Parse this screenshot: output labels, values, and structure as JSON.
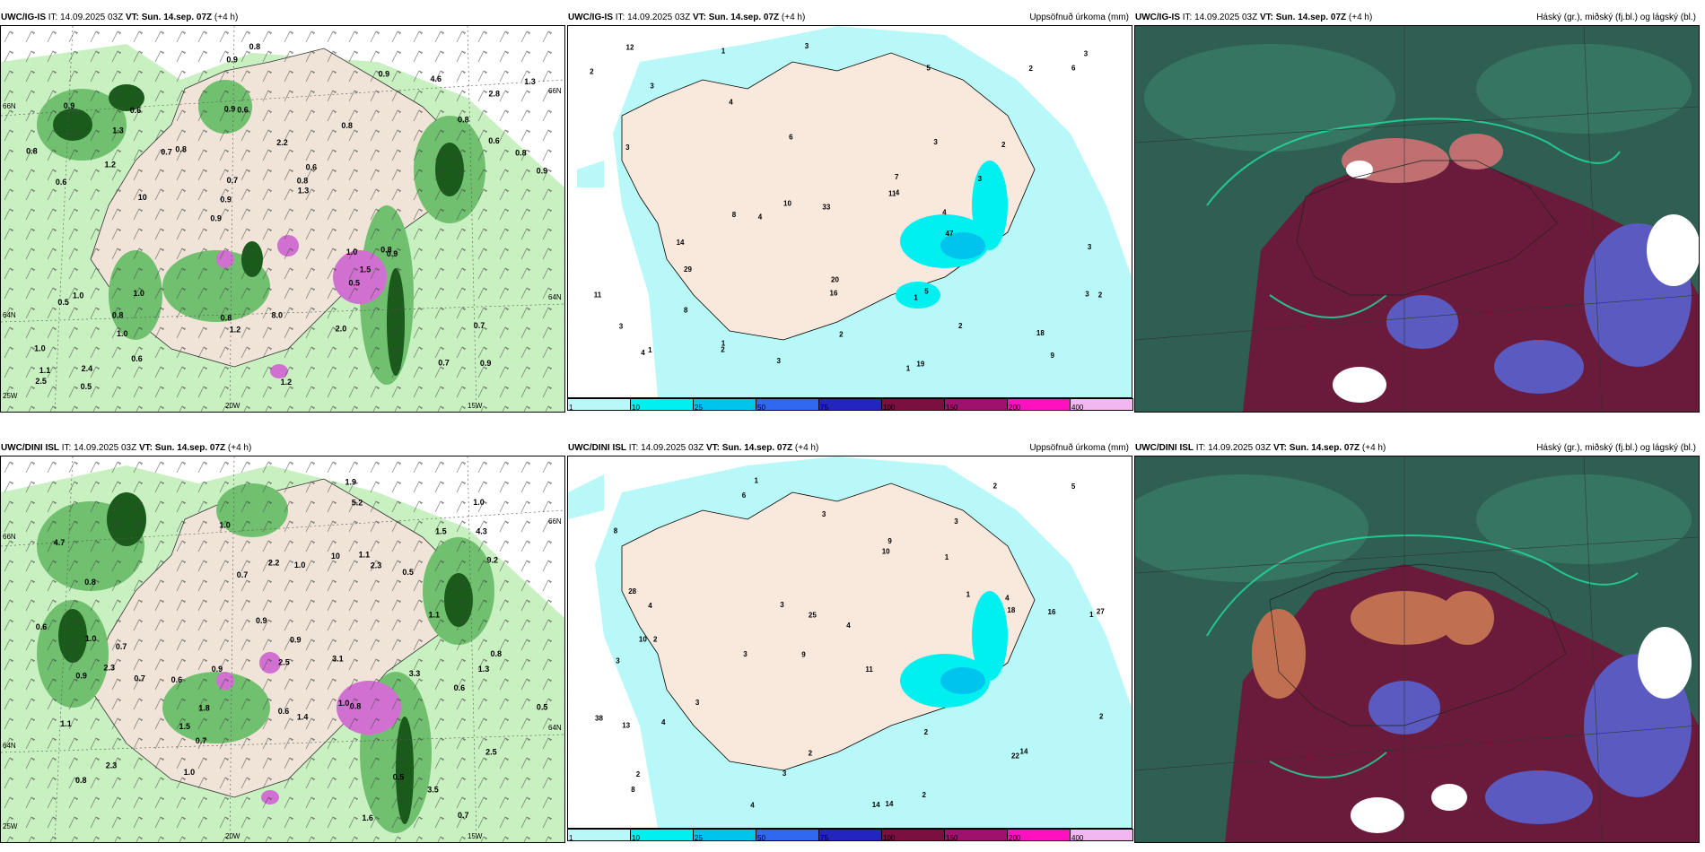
{
  "panels": [
    {
      "id": "p1",
      "model": "UWC/IG-IS",
      "it_prefix": "IT:",
      "it_value": "14.09.2025 03Z",
      "vt_prefix": "VT:",
      "vt_value": "Sun. 14.sep. 07Z",
      "lead": "(+4 h)",
      "right_title": "",
      "axis_labels": [
        "66N",
        "64N",
        "25W",
        "20W",
        "15W",
        "66N",
        "64N"
      ],
      "values": [
        "0.9",
        "0.6",
        "2.8",
        "0.9",
        "0.8",
        "2.4",
        "0.9",
        "2.2",
        "1.0",
        "0.8",
        "1.0",
        "1.0",
        "0.6",
        "0.6",
        "0.9",
        "0.9",
        "0.9",
        "0.9",
        "1.0",
        "0.6",
        "0.9",
        "0.8",
        "0.7",
        "0.6",
        "0.9",
        "1.0",
        "0.7",
        "0.7",
        "0.8",
        "1.2",
        "0.7",
        "1.2",
        "0.5",
        "0.6",
        "0.8",
        "0.8",
        "1.1",
        "1.2",
        "1.3",
        "0.5",
        "0.8",
        "1.3",
        "1.5",
        "2.0",
        "0.8",
        "0.5",
        "2.5",
        "8.0",
        "4.6",
        "0.8",
        "10",
        "0.8",
        "1.3"
      ],
      "colors": {
        "accent": "#f3b7ef"
      }
    },
    {
      "id": "p2",
      "model": "UWC/IG-IS",
      "it_prefix": "IT:",
      "it_value": "14.09.2025 03Z",
      "vt_prefix": "VT:",
      "vt_value": "Sun. 14.sep. 07Z",
      "lead": "(+4 h)",
      "right_title": "Uppsöfnuð úrkoma (mm)",
      "values": [
        "3",
        "1",
        "1",
        "2",
        "1",
        "3",
        "8",
        "9",
        "3",
        "6",
        "2",
        "2",
        "10",
        "16",
        "5",
        "11",
        "3",
        "2",
        "4",
        "2",
        "1",
        "3",
        "7",
        "4",
        "2",
        "14",
        "11",
        "29",
        "12",
        "47",
        "33",
        "19",
        "20",
        "6",
        "8",
        "4",
        "3",
        "3",
        "3",
        "18",
        "4",
        "3",
        "2",
        "1",
        "4",
        "5",
        "3"
      ],
      "colorbar": {
        "ticks": [
          "1",
          "10",
          "25",
          "50",
          "75",
          "100",
          "150",
          "200",
          "400"
        ],
        "colors": [
          "#b8f8f8",
          "#00f0f0",
          "#00c4ee",
          "#2e6af0",
          "#2424c0",
          "#7a1040",
          "#a0106e",
          "#ff10c0",
          "#f3b7ef"
        ]
      }
    },
    {
      "id": "p3",
      "model": "UWC/IG-IS",
      "it_prefix": "IT:",
      "it_value": "14.09.2025 03Z",
      "vt_prefix": "VT:",
      "vt_value": "Sun. 14.sep. 07Z",
      "lead": "(+4 h)",
      "right_title": "Háský (gr.), miðský (fj.bl.) og lágský (bl.)"
    },
    {
      "id": "p4",
      "model": "UWC/DINI ISL",
      "it_prefix": "IT:",
      "it_value": "14.09.2025 03Z",
      "vt_prefix": "VT:",
      "vt_value": "Sun. 14.sep. 07Z",
      "lead": "(+4 h)",
      "right_title": "",
      "axis_labels": [
        "66N",
        "64N",
        "25W",
        "20W",
        "15W",
        "66N",
        "64N"
      ],
      "values": [
        "0.7",
        "2.3",
        "1.0",
        "4.7",
        "2.5",
        "0.8",
        "2.3",
        "0.6",
        "0.5",
        "2.2",
        "2.3",
        "3.5",
        "0.7",
        "1.0",
        "3.1",
        "1.1",
        "3.3",
        "0.9",
        "0.6",
        "0.8",
        "1.0",
        "1.0",
        "1.1",
        "0.5",
        "0.8",
        "1.0",
        "0.7",
        "2.5",
        "0.9",
        "4.3",
        "0.8",
        "0.9",
        "1.5",
        "1.1",
        "0.7",
        "0.6",
        "1.3",
        "0.5",
        "1.5",
        "1.6",
        "1.8",
        "1.4",
        "1.0",
        "1.9",
        "0.9",
        "0.7",
        "9.2",
        "5.2",
        "10",
        "0.6"
      ],
      "colors": {
        "accent": "#f3b7ef"
      }
    },
    {
      "id": "p5",
      "model": "UWC/DINI ISL",
      "it_prefix": "IT:",
      "it_value": "14.09.2025 03Z",
      "vt_prefix": "VT:",
      "vt_value": "Sun. 14.sep. 07Z",
      "lead": "(+4 h)",
      "right_title": "Uppsöfnuð úrkoma (mm)",
      "values": [
        "1",
        "3",
        "1",
        "9",
        "11",
        "2",
        "8",
        "1",
        "3",
        "10",
        "4",
        "8",
        "6",
        "3",
        "14",
        "14",
        "2",
        "2",
        "1",
        "3",
        "4",
        "10",
        "27",
        "16",
        "38",
        "28",
        "25",
        "18",
        "14",
        "13",
        "22",
        "9",
        "4",
        "3",
        "2",
        "2",
        "4",
        "3",
        "5",
        "3",
        "2",
        "4",
        "2"
      ],
      "colorbar": {
        "ticks": [
          "1",
          "10",
          "25",
          "50",
          "75",
          "100",
          "150",
          "200",
          "400"
        ],
        "colors": [
          "#b8f8f8",
          "#00f0f0",
          "#00c4ee",
          "#2e6af0",
          "#2424c0",
          "#7a1040",
          "#a0106e",
          "#ff10c0",
          "#f3b7ef"
        ]
      }
    },
    {
      "id": "p6",
      "model": "UWC/DINI ISL",
      "it_prefix": "IT:",
      "it_value": "14.09.2025 03Z",
      "vt_prefix": "VT:",
      "vt_value": "Sun. 14.sep. 07Z",
      "lead": "(+4 h)",
      "right_title": "Háský (gr.), miðský (fj.bl.) og lágský (bl.)"
    }
  ]
}
